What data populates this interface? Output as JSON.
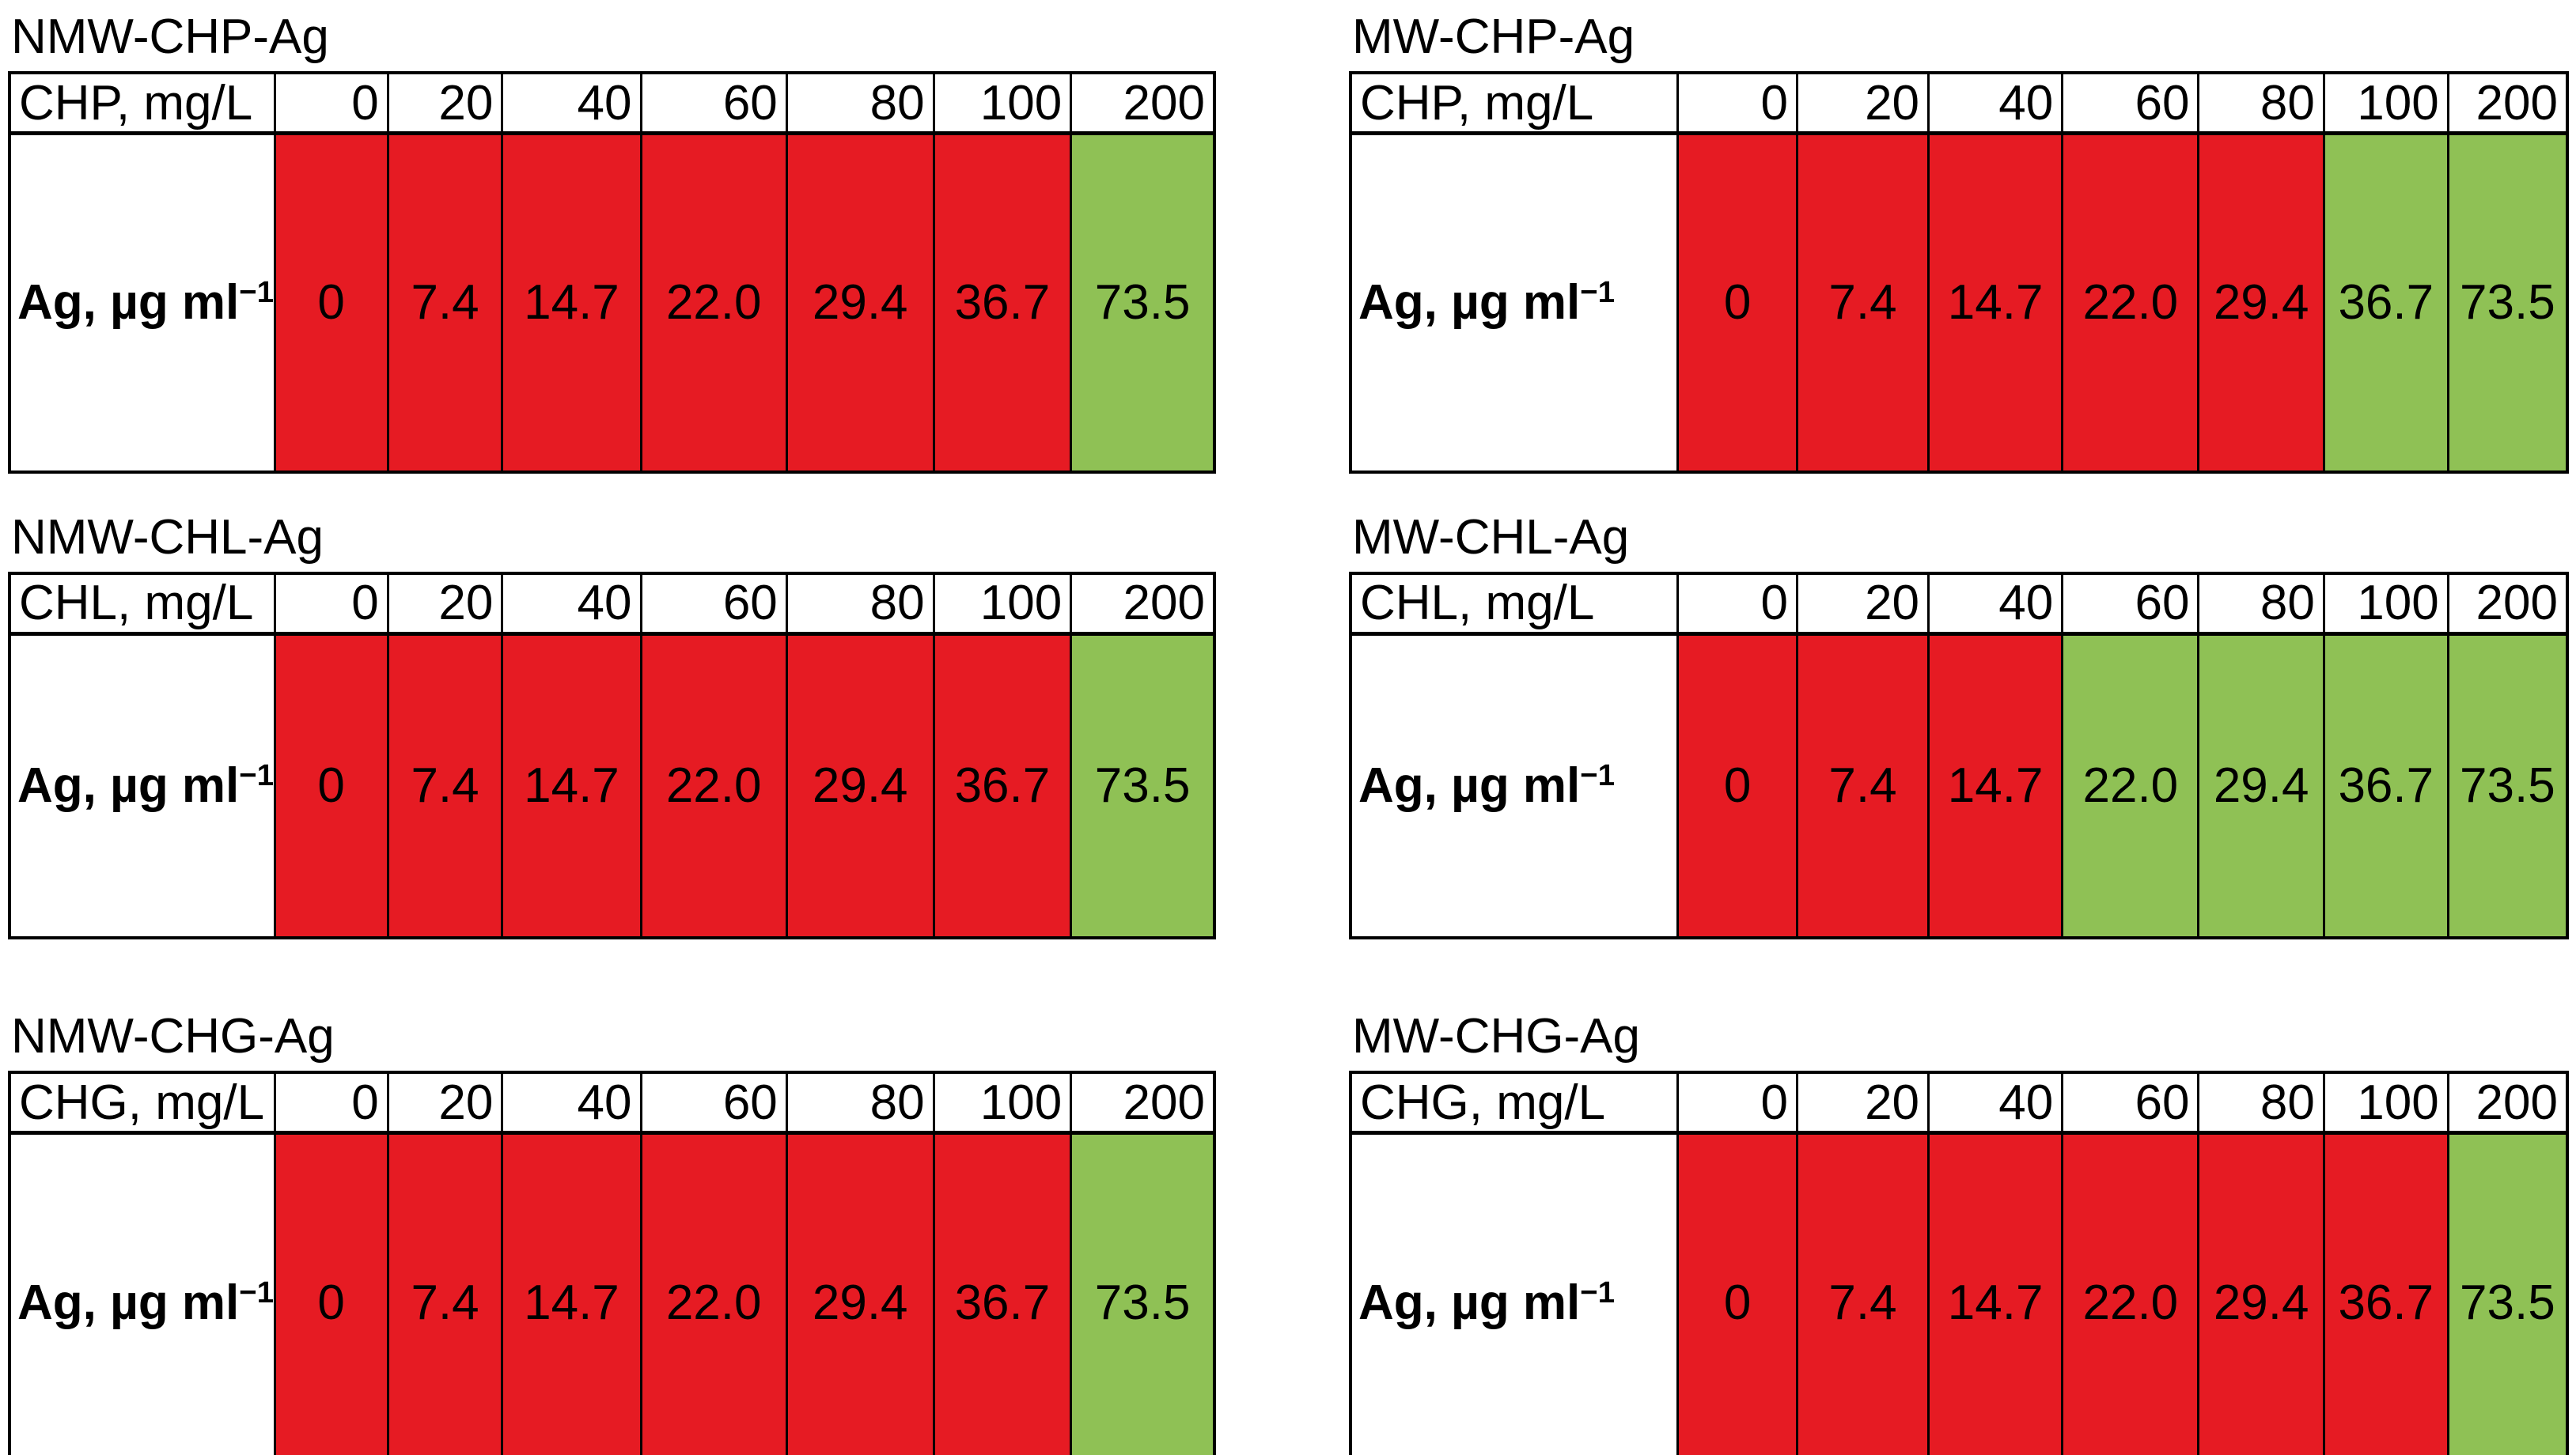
{
  "colors": {
    "red": "#e61b23",
    "green": "#8fc155",
    "border": "#000000",
    "background": "#ffffff"
  },
  "ag_label": {
    "base": "Ag, µg ml",
    "sup": "−1"
  },
  "concentrations": [
    "0",
    "20",
    "40",
    "60",
    "80",
    "100",
    "200"
  ],
  "ag_values": [
    "0",
    "7.4",
    "14.7",
    "22.0",
    "29.4",
    "36.7",
    "73.5"
  ],
  "tables": [
    {
      "title": "NMW-CHP-Ag",
      "row_header": "CHP, mg/L",
      "cell_states": [
        "red",
        "red",
        "red",
        "red",
        "red",
        "red",
        "green"
      ]
    },
    {
      "title": "MW-CHP-Ag",
      "row_header": "CHP, mg/L",
      "cell_states": [
        "red",
        "red",
        "red",
        "red",
        "red",
        "green",
        "green"
      ]
    },
    {
      "title": "NMW-CHL-Ag",
      "row_header": "CHL, mg/L",
      "cell_states": [
        "red",
        "red",
        "red",
        "red",
        "red",
        "red",
        "green"
      ]
    },
    {
      "title": "MW-CHL-Ag",
      "row_header": "CHL, mg/L",
      "cell_states": [
        "red",
        "red",
        "red",
        "green",
        "green",
        "green",
        "green"
      ]
    },
    {
      "title": "NMW-CHG-Ag",
      "row_header": "CHG, mg/L",
      "cell_states": [
        "red",
        "red",
        "red",
        "red",
        "red",
        "red",
        "green"
      ]
    },
    {
      "title": "MW-CHG-Ag",
      "row_header": "CHG, mg/L",
      "cell_states": [
        "red",
        "red",
        "red",
        "red",
        "red",
        "red",
        "green"
      ]
    }
  ],
  "chart_data": [
    {
      "type": "table",
      "title": "NMW-CHP-Ag",
      "columns": [
        "CHP, mg/L",
        "0",
        "20",
        "40",
        "60",
        "80",
        "100",
        "200"
      ],
      "rows": [
        [
          "Ag, µg ml⁻¹",
          "0",
          "7.4",
          "14.7",
          "22.0",
          "29.4",
          "36.7",
          "73.5"
        ]
      ],
      "value_cell_colors": [
        "red",
        "red",
        "red",
        "red",
        "red",
        "red",
        "green"
      ]
    },
    {
      "type": "table",
      "title": "MW-CHP-Ag",
      "columns": [
        "CHP, mg/L",
        "0",
        "20",
        "40",
        "60",
        "80",
        "100",
        "200"
      ],
      "rows": [
        [
          "Ag, µg ml⁻¹",
          "0",
          "7.4",
          "14.7",
          "22.0",
          "29.4",
          "36.7",
          "73.5"
        ]
      ],
      "value_cell_colors": [
        "red",
        "red",
        "red",
        "red",
        "red",
        "green",
        "green"
      ]
    },
    {
      "type": "table",
      "title": "NMW-CHL-Ag",
      "columns": [
        "CHL, mg/L",
        "0",
        "20",
        "40",
        "60",
        "80",
        "100",
        "200"
      ],
      "rows": [
        [
          "Ag, µg ml⁻¹",
          "0",
          "7.4",
          "14.7",
          "22.0",
          "29.4",
          "36.7",
          "73.5"
        ]
      ],
      "value_cell_colors": [
        "red",
        "red",
        "red",
        "red",
        "red",
        "red",
        "green"
      ]
    },
    {
      "type": "table",
      "title": "MW-CHL-Ag",
      "columns": [
        "CHL, mg/L",
        "0",
        "20",
        "40",
        "60",
        "80",
        "100",
        "200"
      ],
      "rows": [
        [
          "Ag, µg ml⁻¹",
          "0",
          "7.4",
          "14.7",
          "22.0",
          "29.4",
          "36.7",
          "73.5"
        ]
      ],
      "value_cell_colors": [
        "red",
        "red",
        "red",
        "green",
        "green",
        "green",
        "green"
      ]
    },
    {
      "type": "table",
      "title": "NMW-CHG-Ag",
      "columns": [
        "CHG, mg/L",
        "0",
        "20",
        "40",
        "60",
        "80",
        "100",
        "200"
      ],
      "rows": [
        [
          "Ag, µg ml⁻¹",
          "0",
          "7.4",
          "14.7",
          "22.0",
          "29.4",
          "36.7",
          "73.5"
        ]
      ],
      "value_cell_colors": [
        "red",
        "red",
        "red",
        "red",
        "red",
        "red",
        "green"
      ]
    },
    {
      "type": "table",
      "title": "MW-CHG-Ag",
      "columns": [
        "CHG, mg/L",
        "0",
        "20",
        "40",
        "60",
        "80",
        "100",
        "200"
      ],
      "rows": [
        [
          "Ag, µg ml⁻¹",
          "0",
          "7.4",
          "14.7",
          "22.0",
          "29.4",
          "36.7",
          "73.5"
        ]
      ],
      "value_cell_colors": [
        "red",
        "red",
        "red",
        "red",
        "red",
        "red",
        "green"
      ]
    }
  ]
}
